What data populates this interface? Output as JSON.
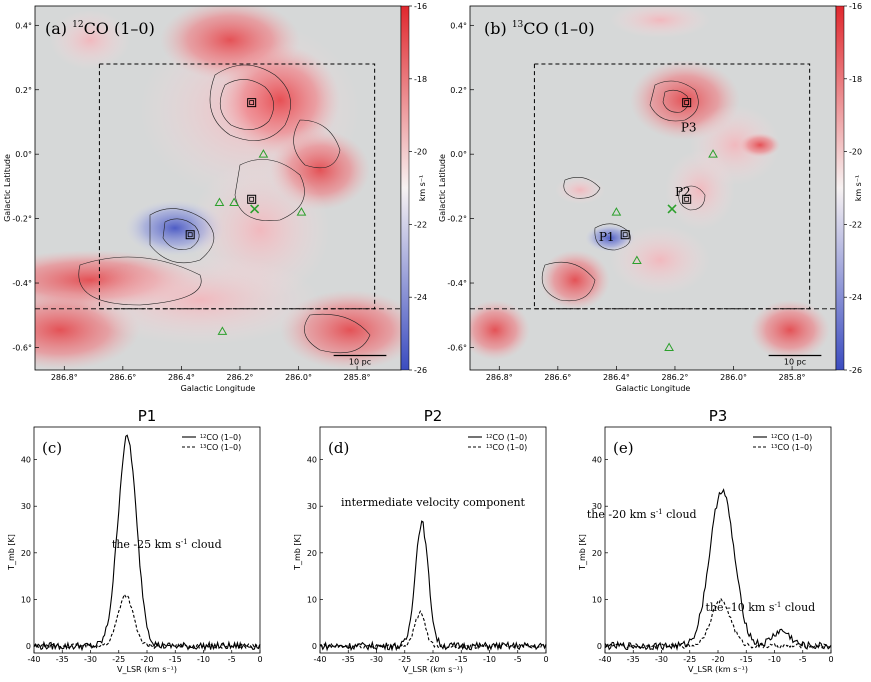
{
  "chart_data": [
    {
      "type": "heatmap",
      "panel": "a",
      "title_prefix": "(a) ",
      "title_sup": "12",
      "title_main": "CO (1–0)",
      "xlabel": "Galactic Longitude",
      "ylabel": "Galactic Latitude",
      "xlim": [
        286.9,
        285.65
      ],
      "ylim": [
        -0.67,
        0.46
      ],
      "xticks": [
        "286.8°",
        "286.6°",
        "286.4°",
        "286.2°",
        "286.0°",
        "285.8°"
      ],
      "xtick_values": [
        286.8,
        286.6,
        286.4,
        286.2,
        286.0,
        285.8
      ],
      "yticks": [
        "0.4°",
        "0.2°",
        "0.0°",
        "-0.2°",
        "-0.4°",
        "-0.6°"
      ],
      "ytick_values": [
        0.4,
        0.2,
        0.0,
        -0.2,
        -0.4,
        -0.6
      ],
      "box": {
        "l_min": 285.74,
        "l_max": 286.68,
        "b_min": -0.48,
        "b_max": 0.28
      },
      "scalebar_label": "10 pc",
      "colorbar": {
        "label": "km s⁻¹",
        "ticks": [
          "-16",
          "-18",
          "-20",
          "-22",
          "-24",
          "-26"
        ],
        "tick_values": [
          -16,
          -18,
          -20,
          -22,
          -24,
          -26
        ],
        "range": [
          -26,
          -16
        ],
        "low_color": "#3b4cc0",
        "mid_color": "#f7f2f2",
        "high_color": "#e0282e"
      },
      "markers": [
        {
          "type": "square",
          "l": 286.16,
          "b": 0.16
        },
        {
          "type": "square",
          "l": 286.37,
          "b": -0.25
        },
        {
          "type": "square",
          "l": 286.16,
          "b": -0.14
        },
        {
          "type": "x",
          "l": 286.15,
          "b": -0.17
        },
        {
          "type": "triangle",
          "l": 286.12,
          "b": 0.0
        },
        {
          "type": "triangle",
          "l": 286.22,
          "b": -0.15
        },
        {
          "type": "triangle",
          "l": 286.27,
          "b": -0.15
        },
        {
          "type": "triangle",
          "l": 286.26,
          "b": -0.55
        },
        {
          "type": "triangle",
          "l": 285.99,
          "b": -0.18
        }
      ]
    },
    {
      "type": "heatmap",
      "panel": "b",
      "title_prefix": "(b) ",
      "title_sup": "13",
      "title_main": "CO (1–0)",
      "xlabel": "Galactic Longitude",
      "ylabel": "Galactic Latitude",
      "xlim": [
        286.9,
        285.65
      ],
      "ylim": [
        -0.67,
        0.46
      ],
      "xticks": [
        "286.8°",
        "286.6°",
        "286.4°",
        "286.2°",
        "286.0°",
        "285.8°"
      ],
      "xtick_values": [
        286.8,
        286.6,
        286.4,
        286.2,
        286.0,
        285.8
      ],
      "yticks": [
        "0.4°",
        "0.2°",
        "0.0°",
        "-0.2°",
        "-0.4°",
        "-0.6°"
      ],
      "ytick_values": [
        0.4,
        0.2,
        0.0,
        -0.2,
        -0.4,
        -0.6
      ],
      "box": {
        "l_min": 285.74,
        "l_max": 286.68,
        "b_min": -0.48,
        "b_max": 0.28
      },
      "scalebar_label": "10 pc",
      "labels": [
        {
          "text": "P3",
          "l": 286.18,
          "b": 0.07
        },
        {
          "text": "P2",
          "l": 286.2,
          "b": -0.13
        },
        {
          "text": "P1",
          "l": 286.46,
          "b": -0.27
        }
      ],
      "colorbar": {
        "label": "km s⁻¹",
        "ticks": [
          "-16",
          "-18",
          "-20",
          "-22",
          "-24",
          "-26"
        ],
        "tick_values": [
          -16,
          -18,
          -20,
          -22,
          -24,
          -26
        ],
        "range": [
          -26,
          -16
        ],
        "low_color": "#3b4cc0",
        "mid_color": "#f7f2f2",
        "high_color": "#e0282e"
      },
      "markers": [
        {
          "type": "square",
          "l": 286.16,
          "b": 0.16
        },
        {
          "type": "square",
          "l": 286.37,
          "b": -0.25
        },
        {
          "type": "square",
          "l": 286.16,
          "b": -0.14
        },
        {
          "type": "x",
          "l": 286.21,
          "b": -0.17
        },
        {
          "type": "triangle",
          "l": 286.4,
          "b": -0.18
        },
        {
          "type": "triangle",
          "l": 286.33,
          "b": -0.33
        },
        {
          "type": "triangle",
          "l": 286.22,
          "b": -0.6
        },
        {
          "type": "triangle",
          "l": 286.07,
          "b": 0.0
        }
      ]
    },
    {
      "type": "line",
      "panel": "c",
      "title": "P1",
      "panel_label": "(c)",
      "annotation": {
        "pre": "the -25 km s",
        "sup": "-1",
        "post": " cloud",
        "x": -16.5,
        "y": 21
      },
      "xlabel": "V_LSR (km s⁻¹)",
      "ylabel": "T_mb [K]",
      "xlim": [
        -40,
        0
      ],
      "ylim": [
        -1.5,
        47
      ],
      "xticks": [
        -40,
        -35,
        -30,
        -25,
        -20,
        -15,
        -10,
        -5,
        0
      ],
      "yticks": [
        0,
        10,
        20,
        30,
        40
      ],
      "legend": {
        "entries": [
          {
            "sup": "12",
            "text": "CO (1–0)",
            "style": "solid"
          },
          {
            "sup": "13",
            "text": "CO (1–0)",
            "style": "dashed"
          }
        ],
        "placement": "top-right"
      },
      "series": [
        {
          "name": "12CO (1–0)",
          "style": "solid",
          "center": -23.5,
          "sigma": 1.65,
          "peak": 44.8,
          "x": [
            -28,
            -27,
            -26,
            -25,
            -24.5,
            -24,
            -23.5,
            -23,
            -22.5,
            -22,
            -21,
            -20,
            -19
          ],
          "y": [
            0.5,
            2.5,
            9,
            25,
            35,
            42,
            44.8,
            40,
            33,
            22,
            7,
            2,
            0.6
          ]
        },
        {
          "name": "13CO (1–0)",
          "style": "dashed",
          "center": -23.8,
          "sigma": 1.35,
          "peak": 11.0,
          "x": [
            -27,
            -26,
            -25,
            -24,
            -23.5,
            -23,
            -22,
            -21
          ],
          "y": [
            0.5,
            3,
            7.5,
            10.8,
            10.5,
            9.5,
            5,
            1.2
          ]
        }
      ]
    },
    {
      "type": "line",
      "panel": "d",
      "title": "P2",
      "panel_label": "(d)",
      "annotation": {
        "pre": "intermediate velocity component",
        "sup": "",
        "post": "",
        "x": -20,
        "y": 30
      },
      "xlabel": "V_LSR (km s⁻¹)",
      "ylabel": "T_mb [K]",
      "xlim": [
        -40,
        0
      ],
      "ylim": [
        -1.5,
        47
      ],
      "xticks": [
        -40,
        -35,
        -30,
        -25,
        -20,
        -15,
        -10,
        -5,
        0
      ],
      "yticks": [
        0,
        10,
        20,
        30,
        40
      ],
      "legend": {
        "entries": [
          {
            "sup": "12",
            "text": "CO (1–0)",
            "style": "solid"
          },
          {
            "sup": "13",
            "text": "CO (1–0)",
            "style": "dashed"
          }
        ],
        "placement": "top-right"
      },
      "series": [
        {
          "name": "12CO (1–0)",
          "style": "solid",
          "center": -22.0,
          "sigma": 1.15,
          "peak": 26.5,
          "x": [
            -25,
            -24,
            -23,
            -22.5,
            -22,
            -21.5,
            -21,
            -20,
            -19
          ],
          "y": [
            1.5,
            6,
            19,
            25,
            26.5,
            26,
            22,
            8,
            1.5
          ]
        },
        {
          "name": "13CO (1–0)",
          "style": "dashed",
          "center": -22.3,
          "sigma": 0.95,
          "peak": 7.0,
          "x": [
            -24.5,
            -23.5,
            -22.5,
            -22,
            -21,
            -20
          ],
          "y": [
            0.5,
            3,
            7,
            6.8,
            3,
            0.5
          ]
        }
      ]
    },
    {
      "type": "line",
      "panel": "e",
      "title": "P3",
      "panel_label": "(e)",
      "annotations": [
        {
          "pre": "the -20 km s",
          "sup": "-1",
          "post": " cloud",
          "x": -33.5,
          "y": 27.5
        },
        {
          "pre": "the -10 km s",
          "sup": "-1",
          "post": " cloud",
          "x": -12.5,
          "y": 7.5
        }
      ],
      "xlabel": "V_LSR (km s⁻¹)",
      "ylabel": "T_mb [K]",
      "xlim": [
        -40,
        0
      ],
      "ylim": [
        -1.5,
        47
      ],
      "xticks": [
        -40,
        -35,
        -30,
        -25,
        -20,
        -15,
        -10,
        -5,
        0
      ],
      "yticks": [
        0,
        10,
        20,
        30,
        40
      ],
      "legend": {
        "entries": [
          {
            "sup": "12",
            "text": "CO (1–0)",
            "style": "solid"
          },
          {
            "sup": "13",
            "text": "CO (1–0)",
            "style": "dashed"
          }
        ],
        "placement": "top-right"
      },
      "series": [
        {
          "name": "12CO (1–0)",
          "style": "solid",
          "center": -19.3,
          "sigma": 2.15,
          "peak": 33.5,
          "x": [
            -26,
            -24,
            -22,
            -21,
            -20,
            -19.3,
            -18,
            -17,
            -16,
            -14,
            -10,
            -9,
            -8
          ],
          "y": [
            1,
            5,
            17,
            27,
            32,
            33.5,
            29,
            18,
            9,
            2,
            3,
            3.5,
            2.8
          ]
        },
        {
          "name": "13CO (1–0)",
          "style": "dashed",
          "center": -19.5,
          "sigma": 1.75,
          "peak": 9.7,
          "x": [
            -24,
            -22,
            -20,
            -19.5,
            -18,
            -17,
            -15
          ],
          "y": [
            0.5,
            3.5,
            9,
            9.7,
            7,
            3.5,
            0.5
          ]
        }
      ]
    }
  ]
}
